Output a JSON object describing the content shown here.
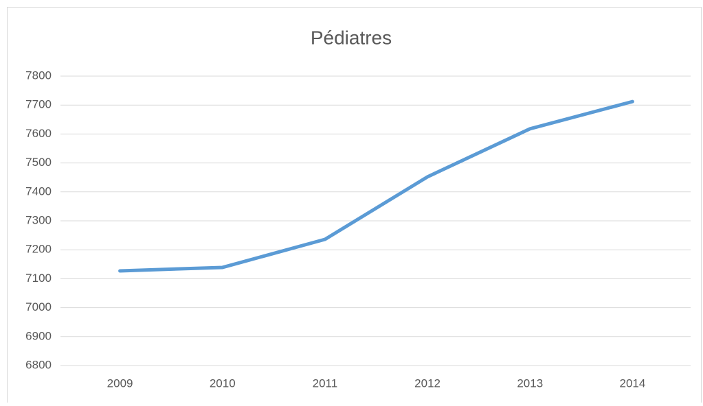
{
  "chart_data": {
    "type": "line",
    "title": "Pédiatres",
    "categories": [
      "2009",
      "2010",
      "2011",
      "2012",
      "2013",
      "2014"
    ],
    "series": [
      {
        "name": "Pédiatres",
        "color": "#5b9bd5",
        "values": [
          7127,
          7139,
          7236,
          7452,
          7618,
          7712
        ]
      }
    ],
    "ylim": [
      6800,
      7800
    ],
    "yticks": [
      6800,
      6900,
      7000,
      7100,
      7200,
      7300,
      7400,
      7500,
      7600,
      7700,
      7800
    ],
    "grid": true
  }
}
